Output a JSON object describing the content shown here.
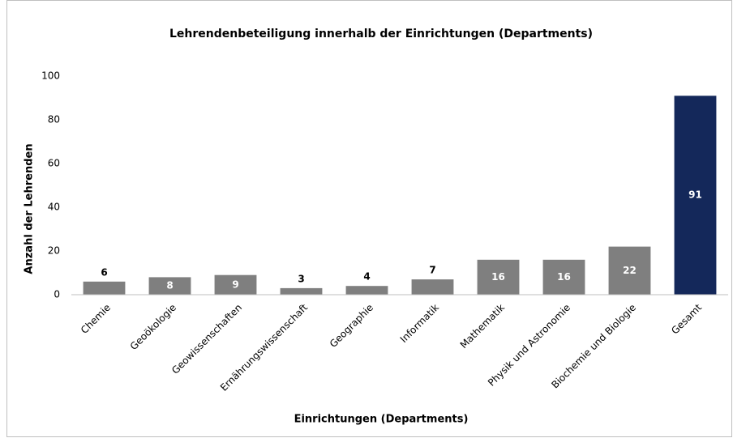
{
  "chart_data": {
    "type": "bar",
    "title": "Lehrendenbeteiligung innerhalb der Einrichtungen (Departments)",
    "x_label": "Einrichtungen (Departments)",
    "y_label": "Anzahl der Lehrenden",
    "categories": [
      "Chemie",
      "Geoökologie",
      "Geowissenschaften",
      "Ernährungswissenschaft",
      "Geographie",
      "Informatik",
      "Mathematik",
      "Physik und Astronomie",
      "Biochemie und Biologie",
      "Gesamt"
    ],
    "values": [
      6,
      8,
      9,
      3,
      4,
      7,
      16,
      16,
      22,
      91
    ],
    "colors": [
      "#7f7f7f",
      "#7f7f7f",
      "#7f7f7f",
      "#7f7f7f",
      "#7f7f7f",
      "#7f7f7f",
      "#7f7f7f",
      "#7f7f7f",
      "#7f7f7f",
      "#14285a"
    ],
    "ylim": [
      0,
      100
    ],
    "yticks": [
      0,
      20,
      40,
      60,
      80,
      100
    ],
    "grid": false
  }
}
